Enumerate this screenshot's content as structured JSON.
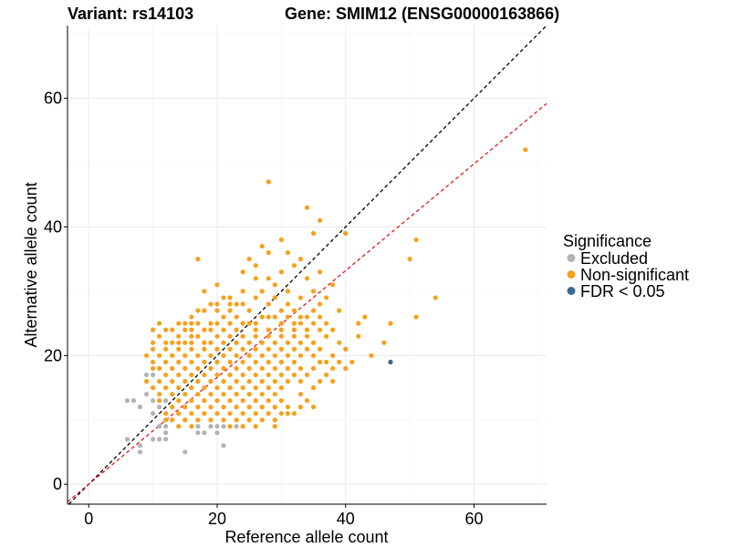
{
  "title_left": "Variant: rs14103",
  "title_right": "Gene: SMIM12 (ENSG00000163866)",
  "chart_data": {
    "type": "scatter",
    "xlabel": "Reference allele count",
    "ylabel": "Alternative allele count",
    "xlim": [
      -3.3,
      71.3
    ],
    "ylim": [
      -3.1,
      71.3
    ],
    "x_ticks": [
      0,
      20,
      40,
      60
    ],
    "y_ticks": [
      0,
      20,
      40,
      60
    ],
    "grid": true,
    "legend": {
      "title": "Significance",
      "position": "right",
      "entries": [
        {
          "label": "Excluded",
          "color": "#B3B3B3"
        },
        {
          "label": "Non-significant",
          "color": "#F7A11A"
        },
        {
          "label": "FDR < 0.05",
          "color": "#3A6A96"
        }
      ]
    },
    "reference_lines": [
      {
        "name": "y = x",
        "slope": 1.0,
        "intercept": 0,
        "color": "#000000",
        "style": "dashed"
      },
      {
        "name": "fit",
        "slope": 0.83,
        "intercept": 0,
        "color": "#E31A1C",
        "style": "dashed"
      }
    ],
    "series": [
      {
        "name": "Excluded",
        "color": "#B3B3B3",
        "points": [
          [
            6,
            13
          ],
          [
            7,
            13
          ],
          [
            8,
            12
          ],
          [
            9,
            17
          ],
          [
            9,
            14
          ],
          [
            10,
            17
          ],
          [
            10,
            13
          ],
          [
            10,
            11
          ],
          [
            11,
            9
          ],
          [
            12,
            9
          ],
          [
            12,
            8
          ],
          [
            11,
            7
          ],
          [
            12,
            7
          ],
          [
            10,
            7
          ],
          [
            6,
            7
          ],
          [
            8,
            6
          ],
          [
            8,
            5
          ],
          [
            15,
            5
          ],
          [
            17,
            8
          ],
          [
            17,
            9
          ],
          [
            18,
            8
          ],
          [
            19,
            9
          ],
          [
            20,
            9
          ],
          [
            20,
            8
          ],
          [
            21,
            6
          ],
          [
            21,
            9
          ],
          [
            23,
            9
          ],
          [
            11,
            12
          ],
          [
            12,
            13
          ]
        ]
      },
      {
        "name": "Non-significant",
        "color": "#F7A11A",
        "points": [
          [
            68,
            52
          ],
          [
            28,
            47
          ],
          [
            34,
            43
          ],
          [
            36,
            41
          ],
          [
            35,
            39
          ],
          [
            40,
            39
          ],
          [
            17,
            35
          ],
          [
            30,
            38
          ],
          [
            31,
            36
          ],
          [
            33,
            35
          ],
          [
            27,
            37
          ],
          [
            28,
            36
          ],
          [
            25,
            35
          ],
          [
            26,
            34
          ],
          [
            24,
            33
          ],
          [
            26,
            32
          ],
          [
            28,
            32
          ],
          [
            30,
            33
          ],
          [
            32,
            34
          ],
          [
            29,
            31
          ],
          [
            34,
            32
          ],
          [
            36,
            33
          ],
          [
            38,
            31
          ],
          [
            35,
            30
          ],
          [
            33,
            29
          ],
          [
            31,
            30
          ],
          [
            29,
            29
          ],
          [
            26,
            29
          ],
          [
            24,
            30
          ],
          [
            22,
            29
          ],
          [
            20,
            28
          ],
          [
            18,
            30
          ],
          [
            20,
            31
          ],
          [
            17,
            27
          ],
          [
            16,
            26
          ],
          [
            18,
            27
          ],
          [
            22,
            27
          ],
          [
            24,
            28
          ],
          [
            28,
            28
          ],
          [
            30,
            27
          ],
          [
            32,
            27
          ],
          [
            36,
            28
          ],
          [
            39,
            27
          ],
          [
            37,
            29
          ],
          [
            50,
            35
          ],
          [
            51,
            38
          ],
          [
            54,
            29
          ],
          [
            51,
            26
          ],
          [
            43,
            26
          ],
          [
            42,
            25
          ],
          [
            47,
            25
          ],
          [
            46,
            22
          ],
          [
            44,
            20
          ],
          [
            47,
            19
          ],
          [
            11,
            25
          ],
          [
            11,
            23
          ],
          [
            13,
            24
          ],
          [
            14,
            25
          ],
          [
            15,
            25
          ],
          [
            16,
            25
          ],
          [
            17,
            25
          ],
          [
            12,
            22
          ],
          [
            13,
            22
          ],
          [
            15,
            22
          ],
          [
            16,
            23
          ],
          [
            17,
            23
          ],
          [
            18,
            24
          ],
          [
            19,
            25
          ],
          [
            20,
            25
          ],
          [
            21,
            26
          ],
          [
            22,
            25
          ],
          [
            23,
            24
          ],
          [
            24,
            25
          ],
          [
            25,
            25
          ],
          [
            26,
            25
          ],
          [
            27,
            26
          ],
          [
            28,
            26
          ],
          [
            29,
            26
          ],
          [
            30,
            25
          ],
          [
            31,
            26
          ],
          [
            32,
            25
          ],
          [
            33,
            25
          ],
          [
            34,
            26
          ],
          [
            35,
            25
          ],
          [
            36,
            24
          ],
          [
            37,
            25
          ],
          [
            10,
            21
          ],
          [
            10,
            19
          ],
          [
            10,
            18
          ],
          [
            11,
            20
          ],
          [
            11,
            18
          ],
          [
            12,
            19
          ],
          [
            13,
            20
          ],
          [
            13,
            18
          ],
          [
            14,
            21
          ],
          [
            14,
            19
          ],
          [
            15,
            20
          ],
          [
            15,
            18
          ],
          [
            16,
            21
          ],
          [
            16,
            19
          ],
          [
            17,
            20
          ],
          [
            17,
            18
          ],
          [
            18,
            21
          ],
          [
            18,
            19
          ],
          [
            19,
            22
          ],
          [
            19,
            20
          ],
          [
            19,
            18
          ],
          [
            20,
            21
          ],
          [
            20,
            19
          ],
          [
            21,
            22
          ],
          [
            21,
            20
          ],
          [
            21,
            18
          ],
          [
            22,
            21
          ],
          [
            22,
            19
          ],
          [
            23,
            22
          ],
          [
            23,
            20
          ],
          [
            23,
            18
          ],
          [
            24,
            21
          ],
          [
            24,
            19
          ],
          [
            25,
            22
          ],
          [
            25,
            20
          ],
          [
            25,
            18
          ],
          [
            26,
            23
          ],
          [
            26,
            21
          ],
          [
            26,
            19
          ],
          [
            27,
            22
          ],
          [
            27,
            20
          ],
          [
            27,
            18
          ],
          [
            28,
            23
          ],
          [
            28,
            21
          ],
          [
            28,
            19
          ],
          [
            29,
            22
          ],
          [
            29,
            20
          ],
          [
            29,
            18
          ],
          [
            30,
            23
          ],
          [
            30,
            21
          ],
          [
            30,
            19
          ],
          [
            31,
            22
          ],
          [
            31,
            20
          ],
          [
            31,
            18
          ],
          [
            32,
            23
          ],
          [
            32,
            21
          ],
          [
            32,
            19
          ],
          [
            33,
            22
          ],
          [
            33,
            20
          ],
          [
            33,
            18
          ],
          [
            34,
            23
          ],
          [
            34,
            21
          ],
          [
            35,
            22
          ],
          [
            35,
            20
          ],
          [
            36,
            21
          ],
          [
            37,
            23
          ],
          [
            38,
            24
          ],
          [
            36,
            19
          ],
          [
            35,
            18
          ],
          [
            37,
            19
          ],
          [
            38,
            20
          ],
          [
            39,
            22
          ],
          [
            40,
            21
          ],
          [
            42,
            23
          ],
          [
            9,
            16
          ],
          [
            10,
            15
          ],
          [
            11,
            16
          ],
          [
            11,
            14
          ],
          [
            12,
            15
          ],
          [
            12,
            17
          ],
          [
            13,
            16
          ],
          [
            13,
            14
          ],
          [
            14,
            17
          ],
          [
            14,
            15
          ],
          [
            15,
            16
          ],
          [
            15,
            14
          ],
          [
            16,
            17
          ],
          [
            16,
            15
          ],
          [
            17,
            16
          ],
          [
            17,
            14
          ],
          [
            18,
            17
          ],
          [
            18,
            15
          ],
          [
            19,
            16
          ],
          [
            19,
            14
          ],
          [
            20,
            17
          ],
          [
            20,
            15
          ],
          [
            21,
            16
          ],
          [
            21,
            14
          ],
          [
            22,
            17
          ],
          [
            22,
            15
          ],
          [
            23,
            16
          ],
          [
            23,
            14
          ],
          [
            24,
            17
          ],
          [
            24,
            15
          ],
          [
            25,
            16
          ],
          [
            25,
            14
          ],
          [
            26,
            17
          ],
          [
            26,
            15
          ],
          [
            27,
            16
          ],
          [
            27,
            14
          ],
          [
            28,
            17
          ],
          [
            28,
            15
          ],
          [
            29,
            16
          ],
          [
            29,
            14
          ],
          [
            30,
            17
          ],
          [
            30,
            15
          ],
          [
            31,
            16
          ],
          [
            32,
            17
          ],
          [
            33,
            16
          ],
          [
            34,
            17
          ],
          [
            11,
            13
          ],
          [
            12,
            11
          ],
          [
            13,
            12
          ],
          [
            13,
            10
          ],
          [
            14,
            13
          ],
          [
            14,
            11
          ],
          [
            15,
            12
          ],
          [
            15,
            10
          ],
          [
            16,
            13
          ],
          [
            16,
            11
          ],
          [
            17,
            12
          ],
          [
            17,
            10
          ],
          [
            18,
            13
          ],
          [
            18,
            11
          ],
          [
            19,
            12
          ],
          [
            19,
            10
          ],
          [
            20,
            13
          ],
          [
            20,
            11
          ],
          [
            21,
            12
          ],
          [
            21,
            10
          ],
          [
            22,
            13
          ],
          [
            22,
            11
          ],
          [
            23,
            12
          ],
          [
            23,
            10
          ],
          [
            24,
            13
          ],
          [
            24,
            11
          ],
          [
            25,
            12
          ],
          [
            25,
            10
          ],
          [
            26,
            13
          ],
          [
            26,
            11
          ],
          [
            27,
            12
          ],
          [
            27,
            10
          ],
          [
            28,
            13
          ],
          [
            28,
            11
          ],
          [
            29,
            12
          ],
          [
            29,
            10
          ],
          [
            30,
            13
          ],
          [
            30,
            11
          ],
          [
            31,
            12
          ],
          [
            32,
            11
          ],
          [
            33,
            12
          ],
          [
            12,
            10
          ],
          [
            14,
            9
          ],
          [
            16,
            9
          ],
          [
            22,
            9
          ],
          [
            24,
            9
          ],
          [
            26,
            9
          ],
          [
            29,
            9
          ],
          [
            31,
            11
          ],
          [
            34,
            13
          ],
          [
            35,
            12
          ],
          [
            33,
            14
          ],
          [
            35,
            15
          ],
          [
            36,
            16
          ],
          [
            37,
            17
          ],
          [
            38,
            18
          ],
          [
            39,
            19
          ],
          [
            41,
            19
          ],
          [
            40,
            18
          ],
          [
            38,
            16
          ],
          [
            10,
            22
          ],
          [
            12,
            24
          ],
          [
            9,
            20
          ],
          [
            10,
            24
          ],
          [
            14,
            23
          ],
          [
            15,
            24
          ],
          [
            16,
            24
          ],
          [
            19,
            24
          ],
          [
            21,
            24
          ],
          [
            23,
            26
          ],
          [
            25,
            27
          ],
          [
            22,
            28
          ],
          [
            20,
            27
          ],
          [
            19,
            28
          ],
          [
            21,
            29
          ],
          [
            23,
            28
          ],
          [
            27,
            30
          ],
          [
            31,
            28
          ],
          [
            33,
            26
          ],
          [
            35,
            27
          ],
          [
            36,
            26
          ],
          [
            34,
            24
          ],
          [
            32,
            24
          ],
          [
            30,
            24
          ],
          [
            28,
            24
          ],
          [
            26,
            24
          ],
          [
            24,
            23
          ],
          [
            22,
            23
          ],
          [
            20,
            23
          ],
          [
            18,
            22
          ],
          [
            16,
            22
          ],
          [
            14,
            22
          ],
          [
            12,
            21
          ]
        ]
      },
      {
        "name": "FDR < 0.05",
        "color": "#3A6A96",
        "points": [
          [
            47,
            19
          ]
        ]
      }
    ]
  }
}
